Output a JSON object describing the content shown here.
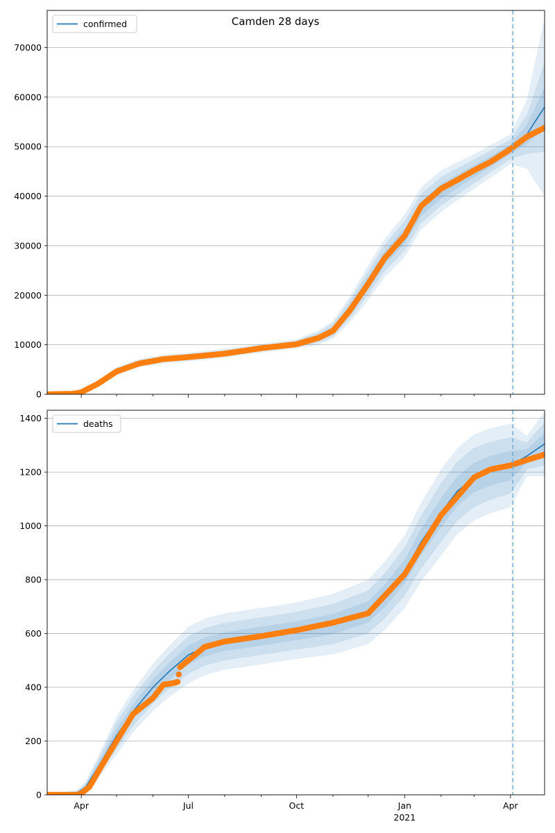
{
  "title": "Camden 28 days",
  "colors": {
    "fit": "#1f77b4",
    "observed": "#ff7f0e",
    "band": "#1f77b4",
    "grid": "#b0b0b0",
    "marker_line": "#7aaed3"
  },
  "x_axis": {
    "ticks": [
      {
        "date": "2020-04-01",
        "label": "Apr"
      },
      {
        "date": "2020-07-01",
        "label": "Jul"
      },
      {
        "date": "2020-10-01",
        "label": "Oct"
      },
      {
        "date": "2021-01-01",
        "label": "Jan",
        "sublabel": "2021"
      },
      {
        "date": "2021-04-01",
        "label": "Apr"
      }
    ],
    "range": [
      "2020-03-03",
      "2021-04-30"
    ],
    "forecast_start": "2021-04-03"
  },
  "chart_data": [
    {
      "type": "line",
      "legend": "confirmed",
      "legend_position": "top-left",
      "grid": "horizontal",
      "ylim": [
        0,
        77500
      ],
      "yticks": [
        "0",
        "10000",
        "20000",
        "30000",
        "40000",
        "50000",
        "60000",
        "70000"
      ],
      "fit": [
        [
          "2020-03-03",
          0
        ],
        [
          "2020-03-25",
          150
        ],
        [
          "2020-04-01",
          400
        ],
        [
          "2020-04-15",
          2200
        ],
        [
          "2020-05-01",
          4700
        ],
        [
          "2020-05-20",
          6300
        ],
        [
          "2020-06-10",
          7100
        ],
        [
          "2020-07-01",
          7500
        ],
        [
          "2020-08-01",
          8300
        ],
        [
          "2020-09-01",
          9300
        ],
        [
          "2020-10-01",
          10200
        ],
        [
          "2020-10-20",
          11500
        ],
        [
          "2020-11-01",
          13000
        ],
        [
          "2020-11-15",
          17000
        ],
        [
          "2020-12-01",
          22500
        ],
        [
          "2020-12-15",
          27500
        ],
        [
          "2021-01-01",
          32000
        ],
        [
          "2021-01-15",
          37500
        ],
        [
          "2021-02-01",
          41000
        ],
        [
          "2021-02-15",
          43000
        ],
        [
          "2021-03-01",
          45000
        ],
        [
          "2021-03-15",
          47000
        ],
        [
          "2021-04-01",
          49500
        ],
        [
          "2021-04-15",
          52500
        ],
        [
          "2021-04-30",
          58000
        ]
      ],
      "band_halfwidth": [
        [
          "2020-03-03",
          [
            0,
            0,
            0
          ]
        ],
        [
          "2020-04-01",
          [
            100,
            180,
            260
          ]
        ],
        [
          "2020-05-01",
          [
            300,
            550,
            800
          ]
        ],
        [
          "2020-07-01",
          [
            300,
            600,
            900
          ]
        ],
        [
          "2020-10-01",
          [
            300,
            600,
            900
          ]
        ],
        [
          "2020-11-01",
          [
            700,
            1300,
            1800
          ]
        ],
        [
          "2020-12-01",
          [
            1300,
            2400,
            3500
          ]
        ],
        [
          "2021-01-01",
          [
            1500,
            3000,
            4300
          ]
        ],
        [
          "2021-02-01",
          [
            1500,
            2900,
            4200
          ]
        ],
        [
          "2021-03-01",
          [
            1200,
            2400,
            3500
          ]
        ],
        [
          "2021-04-01",
          [
            1000,
            2000,
            3000
          ]
        ],
        [
          "2021-04-15",
          [
            2000,
            4000,
            7000
          ]
        ],
        [
          "2021-04-30",
          [
            4000,
            9000,
            18000
          ]
        ]
      ],
      "observed": [
        [
          "2020-03-03",
          0
        ],
        [
          "2020-03-25",
          100
        ],
        [
          "2020-04-01",
          400
        ],
        [
          "2020-04-15",
          2100
        ],
        [
          "2020-05-01",
          4600
        ],
        [
          "2020-05-20",
          6200
        ],
        [
          "2020-06-10",
          7100
        ],
        [
          "2020-07-01",
          7500
        ],
        [
          "2020-08-01",
          8200
        ],
        [
          "2020-09-01",
          9300
        ],
        [
          "2020-10-01",
          10100
        ],
        [
          "2020-10-20",
          11400
        ],
        [
          "2020-11-01",
          12800
        ],
        [
          "2020-11-15",
          16800
        ],
        [
          "2020-12-01",
          22300
        ],
        [
          "2020-12-15",
          27500
        ],
        [
          "2021-01-01",
          32000
        ],
        [
          "2021-01-15",
          38000
        ],
        [
          "2021-02-01",
          41500
        ],
        [
          "2021-02-15",
          43300
        ],
        [
          "2021-03-01",
          45200
        ],
        [
          "2021-03-15",
          46900
        ],
        [
          "2021-04-01",
          49500
        ],
        [
          "2021-04-15",
          52000
        ],
        [
          "2021-04-30",
          53800
        ]
      ]
    },
    {
      "type": "line",
      "legend": "deaths",
      "legend_position": "top-left",
      "grid": "horizontal",
      "ylim": [
        0,
        1430
      ],
      "yticks": [
        "0",
        "200",
        "400",
        "600",
        "800",
        "1000",
        "1200",
        "1400"
      ],
      "fit": [
        [
          "2020-03-03",
          0
        ],
        [
          "2020-03-28",
          5
        ],
        [
          "2020-04-05",
          30
        ],
        [
          "2020-04-15",
          100
        ],
        [
          "2020-05-01",
          220
        ],
        [
          "2020-05-15",
          310
        ],
        [
          "2020-06-01",
          400
        ],
        [
          "2020-06-15",
          460
        ],
        [
          "2020-07-01",
          520
        ],
        [
          "2020-07-15",
          550
        ],
        [
          "2020-08-01",
          570
        ],
        [
          "2020-09-01",
          590
        ],
        [
          "2020-10-01",
          610
        ],
        [
          "2020-11-01",
          635
        ],
        [
          "2020-12-01",
          680
        ],
        [
          "2020-12-15",
          740
        ],
        [
          "2021-01-01",
          830
        ],
        [
          "2021-01-15",
          940
        ],
        [
          "2021-02-01",
          1050
        ],
        [
          "2021-02-15",
          1130
        ],
        [
          "2021-03-01",
          1180
        ],
        [
          "2021-03-15",
          1205
        ],
        [
          "2021-04-01",
          1225
        ],
        [
          "2021-04-15",
          1260
        ],
        [
          "2021-04-30",
          1305
        ]
      ],
      "band_halfwidth": [
        [
          "2020-03-03",
          [
            0,
            0,
            0
          ]
        ],
        [
          "2020-04-01",
          [
            5,
            10,
            15
          ]
        ],
        [
          "2020-05-01",
          [
            25,
            50,
            70
          ]
        ],
        [
          "2020-07-01",
          [
            35,
            70,
            105
          ]
        ],
        [
          "2020-10-01",
          [
            35,
            70,
            105
          ]
        ],
        [
          "2020-12-01",
          [
            40,
            80,
            120
          ]
        ],
        [
          "2021-01-01",
          [
            45,
            90,
            135
          ]
        ],
        [
          "2021-02-01",
          [
            55,
            110,
            160
          ]
        ],
        [
          "2021-03-01",
          [
            55,
            110,
            160
          ]
        ],
        [
          "2021-04-01",
          [
            55,
            105,
            155
          ]
        ],
        [
          "2021-04-15",
          [
            25,
            50,
            75
          ]
        ],
        [
          "2021-04-30",
          [
            40,
            80,
            120
          ]
        ]
      ],
      "observed": [
        [
          "2020-03-03",
          0
        ],
        [
          "2020-03-28",
          0
        ],
        [
          "2020-04-01",
          5
        ],
        [
          "2020-04-08",
          30
        ],
        [
          "2020-04-20",
          120
        ],
        [
          "2020-05-01",
          200
        ],
        [
          "2020-05-15",
          300
        ],
        [
          "2020-06-01",
          360
        ],
        [
          "2020-06-10",
          410
        ],
        [
          "2020-06-18",
          415
        ],
        [
          "2020-06-22",
          420
        ],
        [
          "2020-06-24",
          475
        ],
        [
          "2020-07-01",
          500
        ],
        [
          "2020-07-15",
          550
        ],
        [
          "2020-08-01",
          570
        ],
        [
          "2020-09-01",
          590
        ],
        [
          "2020-10-01",
          612
        ],
        [
          "2020-11-01",
          640
        ],
        [
          "2020-12-01",
          675
        ],
        [
          "2020-12-15",
          740
        ],
        [
          "2021-01-01",
          820
        ],
        [
          "2021-01-15",
          920
        ],
        [
          "2021-02-01",
          1040
        ],
        [
          "2021-02-15",
          1110
        ],
        [
          "2021-03-01",
          1180
        ],
        [
          "2021-03-15",
          1210
        ],
        [
          "2021-04-01",
          1225
        ],
        [
          "2021-04-15",
          1245
        ],
        [
          "2021-04-30",
          1265
        ]
      ]
    }
  ]
}
